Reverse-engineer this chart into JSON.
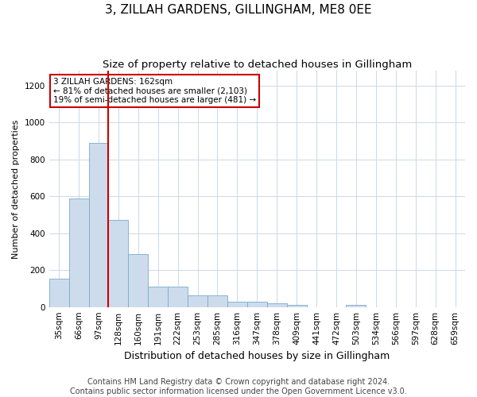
{
  "title": "3, ZILLAH GARDENS, GILLINGHAM, ME8 0EE",
  "subtitle": "Size of property relative to detached houses in Gillingham",
  "xlabel": "Distribution of detached houses by size in Gillingham",
  "ylabel": "Number of detached properties",
  "categories": [
    "35sqm",
    "66sqm",
    "97sqm",
    "128sqm",
    "160sqm",
    "191sqm",
    "222sqm",
    "253sqm",
    "285sqm",
    "316sqm",
    "347sqm",
    "378sqm",
    "409sqm",
    "441sqm",
    "472sqm",
    "503sqm",
    "534sqm",
    "566sqm",
    "597sqm",
    "628sqm",
    "659sqm"
  ],
  "values": [
    155,
    590,
    890,
    470,
    285,
    110,
    110,
    65,
    65,
    28,
    28,
    18,
    12,
    0,
    0,
    12,
    0,
    0,
    0,
    0,
    0
  ],
  "bar_color": "#ccdcec",
  "bar_edge_color": "#7aaac8",
  "vline_color": "#cc0000",
  "annotation_text": "3 ZILLAH GARDENS: 162sqm\n← 81% of detached houses are smaller (2,103)\n19% of semi-detached houses are larger (481) →",
  "annotation_box_color": "#ffffff",
  "annotation_box_edge": "#cc0000",
  "ylim": [
    0,
    1280
  ],
  "yticks": [
    0,
    200,
    400,
    600,
    800,
    1000,
    1200
  ],
  "footer_line1": "Contains HM Land Registry data © Crown copyright and database right 2024.",
  "footer_line2": "Contains public sector information licensed under the Open Government Licence v3.0.",
  "background_color": "#ffffff",
  "grid_color": "#ccd8e8",
  "title_fontsize": 11,
  "subtitle_fontsize": 9.5,
  "xlabel_fontsize": 9,
  "ylabel_fontsize": 8,
  "tick_fontsize": 7.5,
  "footer_fontsize": 7,
  "annotation_fontsize": 7.5
}
